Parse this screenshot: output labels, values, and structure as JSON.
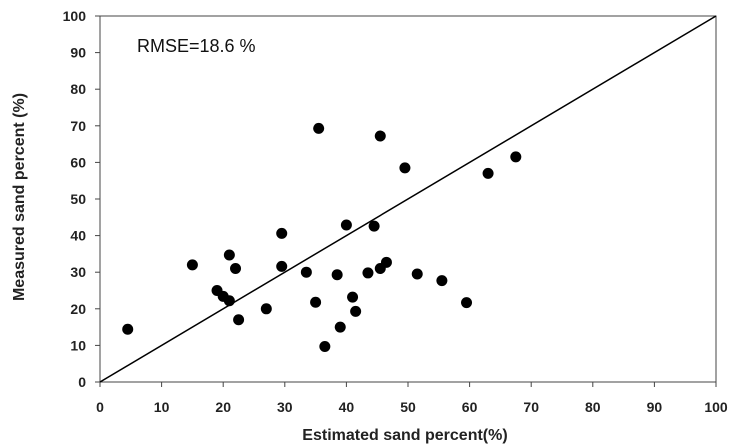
{
  "chart_data": {
    "type": "scatter",
    "xlabel": "Estimated sand percent(%)",
    "ylabel": "Measured sand percent (%)",
    "xlim": [
      0,
      100
    ],
    "ylim": [
      0,
      100
    ],
    "x_ticks": [
      "0",
      "10",
      "20",
      "30",
      "40",
      "50",
      "60",
      "70",
      "80",
      "90",
      "100"
    ],
    "y_ticks": [
      "0",
      "10",
      "20",
      "30",
      "40",
      "50",
      "60",
      "70",
      "80",
      "90",
      "100"
    ],
    "annotation": "RMSE=18.6 %",
    "reference_line": {
      "x": [
        0,
        100
      ],
      "y": [
        0,
        100
      ]
    },
    "grid": false,
    "legend": "none",
    "marker_color": "#000000",
    "points": [
      {
        "x": 4.5,
        "y": 14.4
      },
      {
        "x": 15.0,
        "y": 32.0
      },
      {
        "x": 19.0,
        "y": 25.0
      },
      {
        "x": 20.0,
        "y": 23.4
      },
      {
        "x": 21.0,
        "y": 34.7
      },
      {
        "x": 21.0,
        "y": 22.2
      },
      {
        "x": 22.0,
        "y": 31.0
      },
      {
        "x": 22.5,
        "y": 17.0
      },
      {
        "x": 27.0,
        "y": 20.0
      },
      {
        "x": 29.5,
        "y": 40.6
      },
      {
        "x": 29.5,
        "y": 31.6
      },
      {
        "x": 33.5,
        "y": 30.0
      },
      {
        "x": 35.0,
        "y": 21.8
      },
      {
        "x": 35.5,
        "y": 69.3
      },
      {
        "x": 36.5,
        "y": 9.7
      },
      {
        "x": 38.5,
        "y": 29.3
      },
      {
        "x": 39.0,
        "y": 15.0
      },
      {
        "x": 40.0,
        "y": 42.9
      },
      {
        "x": 41.0,
        "y": 23.2
      },
      {
        "x": 41.5,
        "y": 19.3
      },
      {
        "x": 43.5,
        "y": 29.8
      },
      {
        "x": 44.5,
        "y": 42.6
      },
      {
        "x": 45.5,
        "y": 31.0
      },
      {
        "x": 45.5,
        "y": 67.2
      },
      {
        "x": 46.5,
        "y": 32.7
      },
      {
        "x": 49.5,
        "y": 58.5
      },
      {
        "x": 51.5,
        "y": 29.5
      },
      {
        "x": 55.5,
        "y": 27.7
      },
      {
        "x": 59.5,
        "y": 21.7
      },
      {
        "x": 63.0,
        "y": 57.0
      },
      {
        "x": 67.5,
        "y": 61.5
      }
    ]
  }
}
